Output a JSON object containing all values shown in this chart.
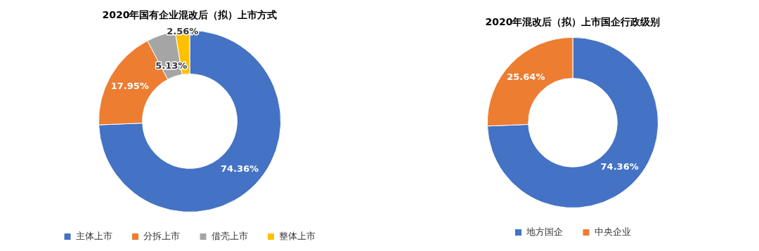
{
  "chart_data": [
    {
      "type": "donut",
      "title": "2020年国有企业混改后（拟）上市方式",
      "categories": [
        "主体上市",
        "分拆上市",
        "借壳上市",
        "整体上市"
      ],
      "values": [
        74.36,
        17.95,
        5.13,
        2.56
      ],
      "colors": [
        "#4472c4",
        "#ed7d31",
        "#a5a5a5",
        "#ffc000"
      ],
      "value_labels": [
        "74.36%",
        "17.95%",
        "5.13%",
        "2.56%"
      ],
      "legend": "bottom"
    },
    {
      "type": "donut",
      "title": "2020年混改后（拟）上市国企行政级别",
      "categories": [
        "地方国企",
        "中央企业"
      ],
      "values": [
        74.36,
        25.64
      ],
      "colors": [
        "#4472c4",
        "#ed7d31"
      ],
      "value_labels": [
        "74.36%",
        "25.64%"
      ],
      "legend": "bottom"
    }
  ]
}
